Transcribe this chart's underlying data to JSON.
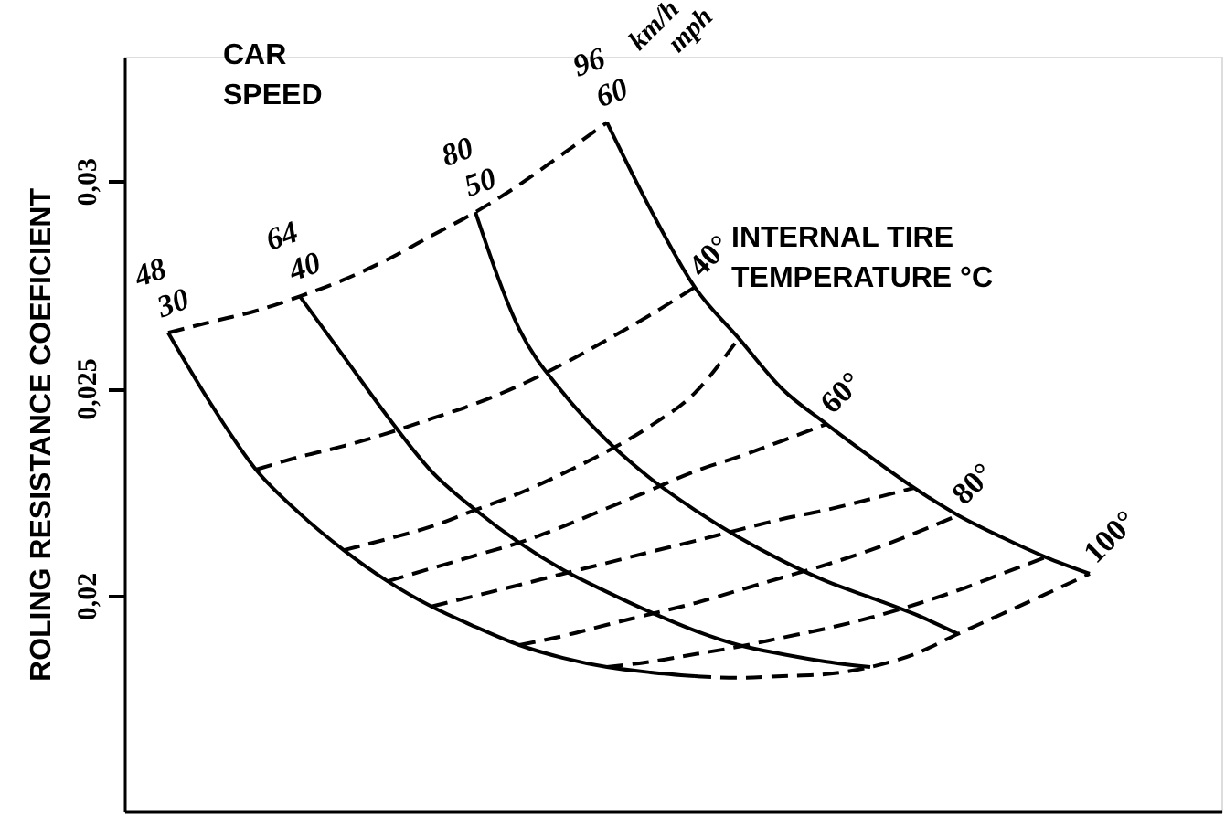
{
  "chart_data": {
    "type": "line",
    "ylabel": "ROLING RESISTANCE COEFICIENT",
    "categories": [
      null,
      null,
      null,
      null,
      null,
      null,
      null,
      null,
      null,
      null,
      null,
      null,
      null,
      null,
      null,
      null,
      null,
      null,
      null,
      null,
      null,
      null,
      null,
      null
    ],
    "ylim": [
      0.0148,
      0.033
    ],
    "yticks": [
      {
        "value": 0.02,
        "label": "0,02"
      },
      {
        "value": 0.025,
        "label": "0,025"
      },
      {
        "value": 0.03,
        "label": "0,03"
      }
    ],
    "tick_labels": "y",
    "grid": false,
    "marker": "none",
    "annotations": [
      "48",
      "64",
      "80",
      "96",
      "km/h",
      "mph",
      "CAR\nSPEED",
      "INTERNAL TIRE\nTEMPERATURE °C"
    ],
    "series": [
      {
        "name": "30",
        "color": "#000000",
        "line_style": "solid",
        "values": [
          0.02634,
          0.02458,
          0.02304,
          0.02198,
          0.0211,
          0.02035,
          0.01974,
          0.01925,
          0.01881,
          0.0185,
          0.01828,
          0.01815,
          0.01806,
          null,
          null,
          null,
          null,
          null,
          null,
          null,
          null,
          null,
          null,
          null
        ]
      },
      {
        "name": "40",
        "color": "#000000",
        "line_style": "solid",
        "values": [
          null,
          null,
          null,
          0.02722,
          0.02577,
          0.02432,
          0.023,
          0.02207,
          0.02128,
          0.02062,
          0.02009,
          0.0196,
          0.01916,
          0.01881,
          0.01859,
          0.01841,
          0.01828,
          null,
          null,
          null,
          null,
          null,
          null,
          null
        ]
      },
      {
        "name": "50",
        "color": "#000000",
        "line_style": "solid",
        "values": [
          null,
          null,
          null,
          null,
          null,
          null,
          null,
          0.02925,
          0.02643,
          0.02489,
          0.02374,
          0.02282,
          0.02207,
          0.02141,
          0.02084,
          0.02035,
          0.01996,
          0.01956,
          0.01908,
          null,
          null,
          null,
          null,
          null
        ]
      },
      {
        "name": "60",
        "color": "#000000",
        "line_style": "solid",
        "values": [
          null,
          null,
          null,
          null,
          null,
          null,
          null,
          null,
          null,
          null,
          0.03141,
          0.0293,
          0.02744,
          0.02621,
          0.02498,
          0.02414,
          0.02335,
          0.0226,
          0.02194,
          0.02141,
          0.02093,
          0.02053,
          null,
          null
        ]
      },
      {
        "color": "#000000",
        "line_style": "dashed",
        "values": [
          0.02634,
          0.02661,
          0.02687,
          0.02722,
          0.02762,
          0.02811,
          0.02868,
          0.02925,
          0.02991,
          0.03066,
          0.03141,
          null,
          null,
          null,
          null,
          null,
          null,
          null,
          null,
          null,
          null,
          null,
          null,
          null
        ]
      },
      {
        "name": "40°",
        "color": "#000000",
        "line_style": "dashed",
        "values": [
          null,
          null,
          0.02304,
          0.02335,
          0.02361,
          0.02392,
          0.02427,
          0.02463,
          0.02507,
          0.02559,
          0.02617,
          0.02678,
          0.02744,
          null,
          null,
          null,
          null,
          null,
          null,
          null,
          null,
          null,
          null,
          null
        ]
      },
      {
        "color": "#000000",
        "line_style": "dashed",
        "values": [
          null,
          null,
          null,
          null,
          0.0211,
          0.02137,
          0.02167,
          0.02207,
          0.02247,
          0.02295,
          0.02348,
          0.0241,
          0.02489,
          0.02621,
          null,
          null,
          null,
          null,
          null,
          null,
          null,
          null,
          null,
          null
        ]
      },
      {
        "name": "60°",
        "color": "#000000",
        "line_style": "dashed",
        "values": [
          null,
          null,
          null,
          null,
          null,
          0.02035,
          0.02066,
          0.02097,
          0.02128,
          0.02167,
          0.02211,
          0.02255,
          0.023,
          0.02335,
          0.02374,
          0.02414,
          null,
          null,
          null,
          null,
          null,
          null,
          null,
          null
        ]
      },
      {
        "color": "#000000",
        "line_style": "dashed",
        "values": [
          null,
          null,
          null,
          null,
          null,
          null,
          0.01974,
          0.02,
          0.02026,
          0.02053,
          0.02079,
          0.02106,
          0.02132,
          0.02159,
          0.02185,
          0.02207,
          0.02233,
          0.0226,
          null,
          null,
          null,
          null,
          null,
          null
        ]
      },
      {
        "name": "80°",
        "color": "#000000",
        "line_style": "dashed",
        "values": [
          null,
          null,
          null,
          null,
          null,
          null,
          null,
          null,
          0.01881,
          0.01903,
          0.0193,
          0.01956,
          0.01982,
          0.02013,
          0.02044,
          0.02075,
          0.0211,
          0.0215,
          0.02194,
          null,
          null,
          null,
          null,
          null
        ]
      },
      {
        "color": "#000000",
        "line_style": "dashed",
        "values": [
          null,
          null,
          null,
          null,
          null,
          null,
          null,
          null,
          null,
          null,
          0.01828,
          0.01841,
          0.01859,
          0.01877,
          0.01899,
          0.01921,
          0.01947,
          0.01978,
          0.02013,
          0.02053,
          0.02093,
          null,
          null,
          null
        ]
      },
      {
        "name": "100°",
        "color": "#000000",
        "line_style": "dashed",
        "values": [
          null,
          null,
          null,
          null,
          null,
          null,
          null,
          null,
          null,
          null,
          null,
          null,
          0.01806,
          0.01802,
          0.01806,
          0.01811,
          0.01828,
          0.01859,
          0.01908,
          0.01956,
          0.02004,
          0.02053,
          null,
          null
        ]
      }
    ]
  }
}
